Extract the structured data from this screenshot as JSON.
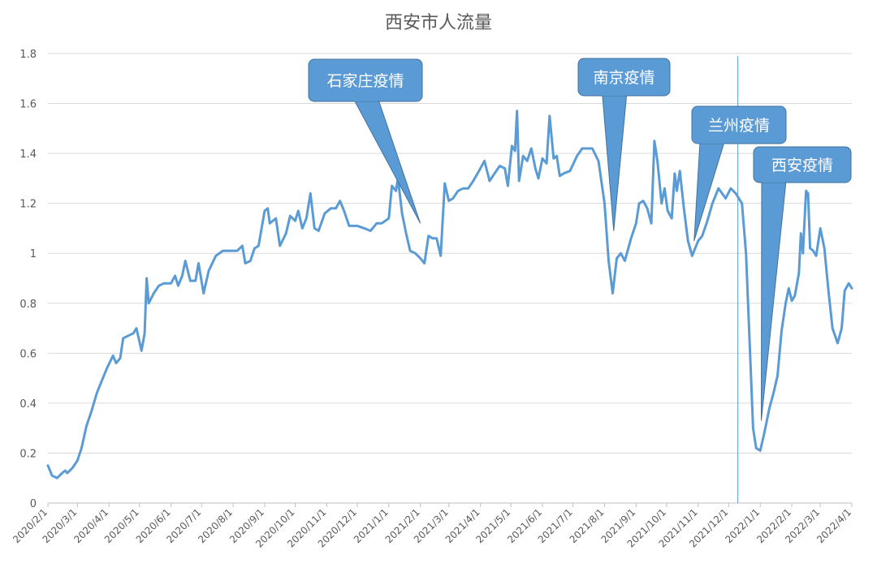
{
  "chart_data": {
    "type": "line",
    "title": "西安市人流量",
    "xlabel": "",
    "ylabel": "",
    "ylim": [
      0,
      1.8
    ],
    "yticks": [
      "0",
      "0.2",
      "0.4",
      "0.6",
      "0.8",
      "1",
      "1.2",
      "1.4",
      "1.6",
      "1.8"
    ],
    "xticks": [
      "2020/2/1",
      "2020/3/1",
      "2020/4/1",
      "2020/5/1",
      "2020/6/1",
      "2020/7/1",
      "2020/8/1",
      "2020/9/1",
      "2020/10/1",
      "2020/11/1",
      "2020/12/1",
      "2021/1/1",
      "2021/2/1",
      "2021/3/1",
      "2021/4/1",
      "2021/5/1",
      "2021/6/1",
      "2021/7/1",
      "2021/8/1",
      "2021/9/1",
      "2021/10/1",
      "2021/11/1",
      "2021/12/1",
      "2022/1/1",
      "2022/2/1",
      "2022/3/1",
      "2022/4/1"
    ],
    "grid": "horizontal",
    "series": [
      {
        "color": "#5B9BD5",
        "points": [
          [
            "2020/2/1",
            0.15
          ],
          [
            "2020/2/5",
            0.11
          ],
          [
            "2020/2/10",
            0.1
          ],
          [
            "2020/2/15",
            0.12
          ],
          [
            "2020/2/18",
            0.13
          ],
          [
            "2020/2/20",
            0.12
          ],
          [
            "2020/2/25",
            0.14
          ],
          [
            "2020/3/1",
            0.17
          ],
          [
            "2020/3/5",
            0.22
          ],
          [
            "2020/3/10",
            0.31
          ],
          [
            "2020/3/15",
            0.37
          ],
          [
            "2020/3/20",
            0.44
          ],
          [
            "2020/3/25",
            0.49
          ],
          [
            "2020/3/30",
            0.54
          ],
          [
            "2020/4/5",
            0.59
          ],
          [
            "2020/4/8",
            0.56
          ],
          [
            "2020/4/12",
            0.58
          ],
          [
            "2020/4/15",
            0.66
          ],
          [
            "2020/4/20",
            0.67
          ],
          [
            "2020/4/25",
            0.68
          ],
          [
            "2020/4/28",
            0.7
          ],
          [
            "2020/5/3",
            0.61
          ],
          [
            "2020/5/6",
            0.68
          ],
          [
            "2020/5/8",
            0.9
          ],
          [
            "2020/5/10",
            0.8
          ],
          [
            "2020/5/15",
            0.84
          ],
          [
            "2020/5/20",
            0.87
          ],
          [
            "2020/5/25",
            0.88
          ],
          [
            "2020/6/1",
            0.88
          ],
          [
            "2020/6/5",
            0.91
          ],
          [
            "2020/6/8",
            0.87
          ],
          [
            "2020/6/12",
            0.91
          ],
          [
            "2020/6/15",
            0.97
          ],
          [
            "2020/6/20",
            0.89
          ],
          [
            "2020/6/25",
            0.89
          ],
          [
            "2020/6/28",
            0.96
          ],
          [
            "2020/7/3",
            0.84
          ],
          [
            "2020/7/8",
            0.93
          ],
          [
            "2020/7/15",
            0.99
          ],
          [
            "2020/7/22",
            1.01
          ],
          [
            "2020/7/30",
            1.01
          ],
          [
            "2020/8/5",
            1.01
          ],
          [
            "2020/8/10",
            1.03
          ],
          [
            "2020/8/13",
            0.96
          ],
          [
            "2020/8/18",
            0.97
          ],
          [
            "2020/8/22",
            1.02
          ],
          [
            "2020/8/26",
            1.03
          ],
          [
            "2020/9/1",
            1.17
          ],
          [
            "2020/9/4",
            1.18
          ],
          [
            "2020/9/6",
            1.12
          ],
          [
            "2020/9/12",
            1.14
          ],
          [
            "2020/9/16",
            1.03
          ],
          [
            "2020/9/22",
            1.08
          ],
          [
            "2020/9/26",
            1.15
          ],
          [
            "2020/10/1",
            1.13
          ],
          [
            "2020/10/4",
            1.17
          ],
          [
            "2020/10/8",
            1.1
          ],
          [
            "2020/10/12",
            1.14
          ],
          [
            "2020/10/16",
            1.24
          ],
          [
            "2020/10/20",
            1.1
          ],
          [
            "2020/10/24",
            1.09
          ],
          [
            "2020/10/30",
            1.16
          ],
          [
            "2020/11/5",
            1.18
          ],
          [
            "2020/11/10",
            1.18
          ],
          [
            "2020/11/14",
            1.21
          ],
          [
            "2020/11/18",
            1.17
          ],
          [
            "2020/11/23",
            1.11
          ],
          [
            "2020/12/1",
            1.11
          ],
          [
            "2020/12/8",
            1.1
          ],
          [
            "2020/12/14",
            1.09
          ],
          [
            "2020/12/20",
            1.12
          ],
          [
            "2020/12/25",
            1.12
          ],
          [
            "2021/1/1",
            1.14
          ],
          [
            "2021/1/4",
            1.27
          ],
          [
            "2021/1/8",
            1.25
          ],
          [
            "2021/1/10",
            1.3
          ],
          [
            "2021/1/14",
            1.16
          ],
          [
            "2021/1/18",
            1.08
          ],
          [
            "2021/1/22",
            1.01
          ],
          [
            "2021/1/27",
            1.0
          ],
          [
            "2021/2/1",
            0.98
          ],
          [
            "2021/2/5",
            0.96
          ],
          [
            "2021/2/9",
            1.07
          ],
          [
            "2021/2/13",
            1.06
          ],
          [
            "2021/2/17",
            1.06
          ],
          [
            "2021/2/21",
            0.99
          ],
          [
            "2021/2/25",
            1.28
          ],
          [
            "2021/3/1",
            1.21
          ],
          [
            "2021/3/5",
            1.22
          ],
          [
            "2021/3/10",
            1.25
          ],
          [
            "2021/3/15",
            1.26
          ],
          [
            "2021/3/20",
            1.26
          ],
          [
            "2021/3/25",
            1.29
          ],
          [
            "2021/4/1",
            1.34
          ],
          [
            "2021/4/5",
            1.37
          ],
          [
            "2021/4/10",
            1.29
          ],
          [
            "2021/4/15",
            1.32
          ],
          [
            "2021/4/20",
            1.35
          ],
          [
            "2021/4/25",
            1.34
          ],
          [
            "2021/4/28",
            1.27
          ],
          [
            "2021/5/2",
            1.43
          ],
          [
            "2021/5/5",
            1.41
          ],
          [
            "2021/5/7",
            1.57
          ],
          [
            "2021/5/9",
            1.29
          ],
          [
            "2021/5/13",
            1.39
          ],
          [
            "2021/5/17",
            1.37
          ],
          [
            "2021/5/21",
            1.42
          ],
          [
            "2021/5/25",
            1.34
          ],
          [
            "2021/5/28",
            1.3
          ],
          [
            "2021/6/1",
            1.38
          ],
          [
            "2021/6/5",
            1.36
          ],
          [
            "2021/6/8",
            1.55
          ],
          [
            "2021/6/12",
            1.38
          ],
          [
            "2021/6/15",
            1.39
          ],
          [
            "2021/6/18",
            1.31
          ],
          [
            "2021/6/22",
            1.32
          ],
          [
            "2021/6/28",
            1.33
          ],
          [
            "2021/7/5",
            1.39
          ],
          [
            "2021/7/10",
            1.42
          ],
          [
            "2021/7/20",
            1.42
          ],
          [
            "2021/7/26",
            1.37
          ],
          [
            "2021/8/1",
            1.2
          ],
          [
            "2021/8/5",
            0.97
          ],
          [
            "2021/8/9",
            0.84
          ],
          [
            "2021/8/13",
            0.98
          ],
          [
            "2021/8/17",
            1.0
          ],
          [
            "2021/8/21",
            0.97
          ],
          [
            "2021/8/27",
            1.06
          ],
          [
            "2021/9/1",
            1.12
          ],
          [
            "2021/9/4",
            1.2
          ],
          [
            "2021/9/8",
            1.21
          ],
          [
            "2021/9/12",
            1.18
          ],
          [
            "2021/9/16",
            1.12
          ],
          [
            "2021/9/19",
            1.45
          ],
          [
            "2021/9/22",
            1.37
          ],
          [
            "2021/9/26",
            1.2
          ],
          [
            "2021/9/29",
            1.26
          ],
          [
            "2021/10/2",
            1.17
          ],
          [
            "2021/10/6",
            1.14
          ],
          [
            "2021/10/9",
            1.32
          ],
          [
            "2021/10/11",
            1.25
          ],
          [
            "2021/10/14",
            1.33
          ],
          [
            "2021/10/18",
            1.18
          ],
          [
            "2021/10/22",
            1.05
          ],
          [
            "2021/10/26",
            0.99
          ],
          [
            "2021/11/1",
            1.05
          ],
          [
            "2021/11/5",
            1.07
          ],
          [
            "2021/11/10",
            1.13
          ],
          [
            "2021/11/15",
            1.2
          ],
          [
            "2021/11/21",
            1.26
          ],
          [
            "2021/11/28",
            1.22
          ],
          [
            "2021/12/3",
            1.26
          ],
          [
            "2021/12/8",
            1.24
          ],
          [
            "2021/12/14",
            1.2
          ],
          [
            "2021/12/18",
            1.0
          ],
          [
            "2021/12/22",
            0.6
          ],
          [
            "2021/12/25",
            0.3
          ],
          [
            "2021/12/28",
            0.22
          ],
          [
            "2022/1/1",
            0.21
          ],
          [
            "2022/1/5",
            0.28
          ],
          [
            "2022/1/10",
            0.38
          ],
          [
            "2022/1/14",
            0.44
          ],
          [
            "2022/1/18",
            0.51
          ],
          [
            "2022/1/22",
            0.69
          ],
          [
            "2022/1/26",
            0.8
          ],
          [
            "2022/1/29",
            0.86
          ],
          [
            "2022/2/1",
            0.81
          ],
          [
            "2022/2/4",
            0.83
          ],
          [
            "2022/2/8",
            0.92
          ],
          [
            "2022/2/10",
            1.08
          ],
          [
            "2022/2/12",
            1.0
          ],
          [
            "2022/2/15",
            1.25
          ],
          [
            "2022/2/17",
            1.24
          ],
          [
            "2022/2/19",
            1.02
          ],
          [
            "2022/2/22",
            1.01
          ],
          [
            "2022/2/25",
            0.99
          ],
          [
            "2022/3/1",
            1.1
          ],
          [
            "2022/3/5",
            1.02
          ],
          [
            "2022/3/9",
            0.85
          ],
          [
            "2022/3/13",
            0.7
          ],
          [
            "2022/3/18",
            0.64
          ],
          [
            "2022/3/22",
            0.7
          ],
          [
            "2022/3/25",
            0.85
          ],
          [
            "2022/3/29",
            0.88
          ],
          [
            "2022/4/1",
            0.86
          ]
        ]
      }
    ],
    "marker_line": {
      "x": "2021/12/10",
      "color": "#5B9BD5"
    },
    "annotations": [
      {
        "text": "石家庄疫情",
        "target": [
          "2021/2/1",
          1.12
        ]
      },
      {
        "text": "南京疫情",
        "target": [
          "2021/8/10",
          1.09
        ]
      },
      {
        "text": "兰州疫情",
        "target": [
          "2021/10/28",
          1.05
        ]
      },
      {
        "text": "西安疫情",
        "target": [
          "2022/1/2",
          0.33
        ]
      }
    ]
  }
}
